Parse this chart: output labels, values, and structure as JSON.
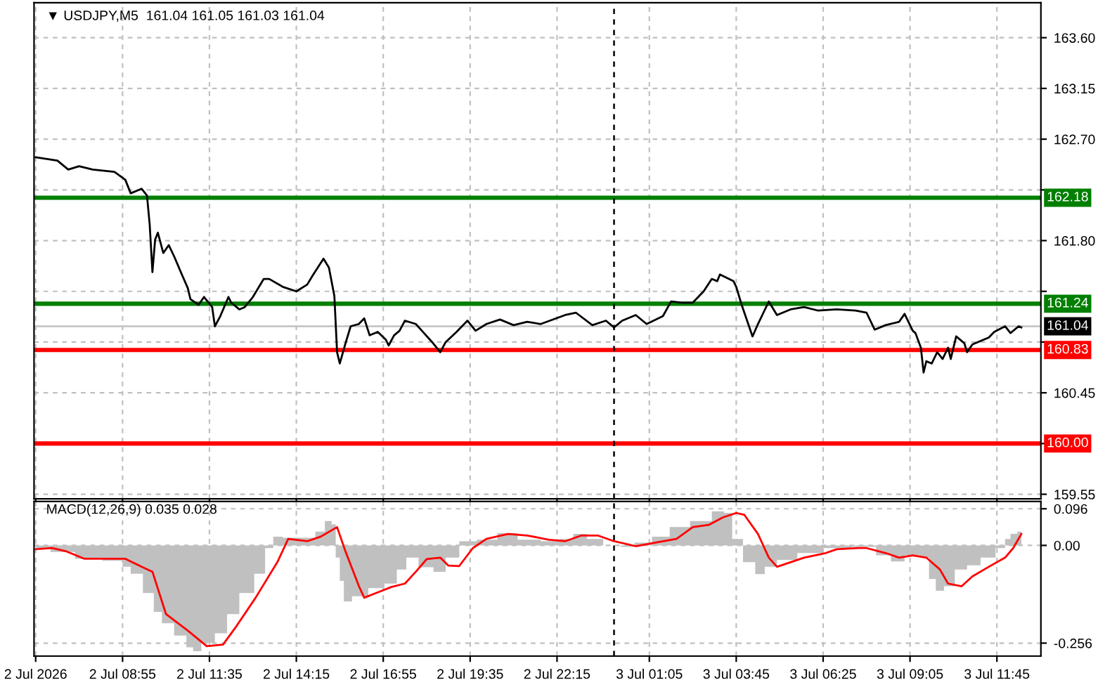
{
  "chart_data": [
    {
      "type": "line",
      "title": "▼ USDJPY,M5  161.04 161.05 161.03 161.04",
      "tick_labels": "y",
      "grid": true,
      "xlim": [
        "2026-07-02T06:12",
        "2026-07-03T13:06"
      ],
      "ylim": [
        159.51,
        163.91
      ],
      "xticks": [
        {
          "value": "2026-07-02T06:15",
          "label": null
        },
        {
          "value": "2026-07-02T08:55",
          "label": null
        },
        {
          "value": "2026-07-02T11:35",
          "label": null
        },
        {
          "value": "2026-07-02T14:15",
          "label": null
        },
        {
          "value": "2026-07-02T16:55",
          "label": null
        },
        {
          "value": "2026-07-02T19:35",
          "label": null
        },
        {
          "value": "2026-07-02T22:15",
          "label": null
        },
        {
          "value": "2026-07-03T01:05",
          "label": null
        },
        {
          "value": "2026-07-03T03:45",
          "label": null
        },
        {
          "value": "2026-07-03T06:25",
          "label": null
        },
        {
          "value": "2026-07-03T09:05",
          "label": null
        },
        {
          "value": "2026-07-03T11:45",
          "label": null
        }
      ],
      "yticks": [
        {
          "value": 159.55,
          "label": "159.55"
        },
        {
          "value": 160.0,
          "label": null
        },
        {
          "value": 160.45,
          "label": "160.45"
        },
        {
          "value": 160.9,
          "label": null
        },
        {
          "value": 161.35,
          "label": null
        },
        {
          "value": 161.8,
          "label": "161.80"
        },
        {
          "value": 162.25,
          "label": null
        },
        {
          "value": 162.7,
          "label": "162.70"
        },
        {
          "value": 163.15,
          "label": "163.15"
        },
        {
          "value": 163.6,
          "label": "163.60"
        }
      ],
      "ref_lines": [
        {
          "axis": "x",
          "value": "2026-07-03T00:00",
          "color": "#000000",
          "line_style": "dashed"
        },
        {
          "axis": "y",
          "value": 161.04,
          "label": "161.04",
          "color": "#c0c0c0"
        },
        {
          "axis": "y",
          "value": 162.18,
          "label": "162.18",
          "color": "#007f00"
        },
        {
          "axis": "y",
          "value": 161.24,
          "label": "161.24",
          "color": "#007f00"
        },
        {
          "axis": "y",
          "value": 160.83,
          "label": "160.83",
          "color": "#ff0000"
        },
        {
          "axis": "y",
          "value": 160.0,
          "label": "160.00",
          "color": "#ff0000"
        }
      ],
      "series": [
        {
          "color": "#000000",
          "x": [
            "2026-07-02T06:15",
            "2026-07-02T06:55",
            "2026-07-02T07:15",
            "2026-07-02T07:35",
            "2026-07-02T08:00",
            "2026-07-02T08:40",
            "2026-07-02T09:00",
            "2026-07-02T09:10",
            "2026-07-02T09:30",
            "2026-07-02T09:40",
            "2026-07-02T09:45",
            "2026-07-02T09:50",
            "2026-07-02T09:55",
            "2026-07-02T10:00",
            "2026-07-02T10:10",
            "2026-07-02T10:20",
            "2026-07-02T10:30",
            "2026-07-02T10:45",
            "2026-07-02T10:55",
            "2026-07-02T11:00",
            "2026-07-02T11:15",
            "2026-07-02T11:25",
            "2026-07-02T11:40",
            "2026-07-02T11:45",
            "2026-07-02T11:55",
            "2026-07-02T12:10",
            "2026-07-02T12:15",
            "2026-07-02T12:30",
            "2026-07-02T12:40",
            "2026-07-02T12:55",
            "2026-07-02T13:15",
            "2026-07-02T13:25",
            "2026-07-02T13:50",
            "2026-07-02T14:15",
            "2026-07-02T14:35",
            "2026-07-02T14:45",
            "2026-07-02T15:05",
            "2026-07-02T15:15",
            "2026-07-02T15:25",
            "2026-07-02T15:30",
            "2026-07-02T15:35",
            "2026-07-02T15:45",
            "2026-07-02T15:55",
            "2026-07-02T16:10",
            "2026-07-02T16:20",
            "2026-07-02T16:30",
            "2026-07-02T16:45",
            "2026-07-02T17:00",
            "2026-07-02T17:05",
            "2026-07-02T17:15",
            "2026-07-02T17:25",
            "2026-07-02T17:35",
            "2026-07-02T17:55",
            "2026-07-02T18:10",
            "2026-07-02T18:25",
            "2026-07-02T18:40",
            "2026-07-02T18:50",
            "2026-07-02T19:10",
            "2026-07-02T19:30",
            "2026-07-02T19:45",
            "2026-07-02T20:05",
            "2026-07-02T20:30",
            "2026-07-02T20:55",
            "2026-07-02T21:20",
            "2026-07-02T21:45",
            "2026-07-02T22:30",
            "2026-07-02T22:50",
            "2026-07-02T23:20",
            "2026-07-02T23:45",
            "2026-07-03T00:00",
            "2026-07-03T00:15",
            "2026-07-03T00:40",
            "2026-07-03T01:00",
            "2026-07-03T01:30",
            "2026-07-03T01:45",
            "2026-07-03T02:05",
            "2026-07-03T02:25",
            "2026-07-03T02:45",
            "2026-07-03T03:00",
            "2026-07-03T03:10",
            "2026-07-03T03:15",
            "2026-07-03T03:40",
            "2026-07-03T03:45",
            "2026-07-03T03:55",
            "2026-07-03T04:00",
            "2026-07-03T04:15",
            "2026-07-03T04:25",
            "2026-07-03T04:35",
            "2026-07-03T04:45",
            "2026-07-03T05:00",
            "2026-07-03T05:25",
            "2026-07-03T05:50",
            "2026-07-03T06:15",
            "2026-07-03T06:50",
            "2026-07-03T07:25",
            "2026-07-03T07:45",
            "2026-07-03T08:00",
            "2026-07-03T08:20",
            "2026-07-03T08:45",
            "2026-07-03T08:55",
            "2026-07-03T09:10",
            "2026-07-03T09:15",
            "2026-07-03T09:25",
            "2026-07-03T09:30",
            "2026-07-03T09:35",
            "2026-07-03T09:45",
            "2026-07-03T09:55",
            "2026-07-03T10:05",
            "2026-07-03T10:15",
            "2026-07-03T10:20",
            "2026-07-03T10:30",
            "2026-07-03T10:45",
            "2026-07-03T10:50",
            "2026-07-03T11:00",
            "2026-07-03T11:30",
            "2026-07-03T11:40",
            "2026-07-03T12:00",
            "2026-07-03T12:10",
            "2026-07-03T12:25",
            "2026-07-03T12:30"
          ],
          "values": [
            162.54,
            162.51,
            162.43,
            162.46,
            162.43,
            162.41,
            162.34,
            162.22,
            162.26,
            162.2,
            161.94,
            161.52,
            161.81,
            161.87,
            161.69,
            161.76,
            161.66,
            161.49,
            161.38,
            161.28,
            161.23,
            161.3,
            161.21,
            161.04,
            161.13,
            161.3,
            161.25,
            161.19,
            161.21,
            161.3,
            161.46,
            161.46,
            161.39,
            161.35,
            161.41,
            161.49,
            161.64,
            161.56,
            161.31,
            160.81,
            160.71,
            160.88,
            161.04,
            161.06,
            161.11,
            160.96,
            160.99,
            160.92,
            160.87,
            160.96,
            161.0,
            161.09,
            161.06,
            160.98,
            160.9,
            160.81,
            160.9,
            160.99,
            161.09,
            161.0,
            161.06,
            161.1,
            161.05,
            161.08,
            161.06,
            161.14,
            161.16,
            161.05,
            161.09,
            161.03,
            161.09,
            161.14,
            161.06,
            161.13,
            161.26,
            161.25,
            161.25,
            161.35,
            161.46,
            161.44,
            161.5,
            161.44,
            161.39,
            161.23,
            161.16,
            160.95,
            161.06,
            161.16,
            161.26,
            161.14,
            161.19,
            161.21,
            161.18,
            161.19,
            161.18,
            161.16,
            161.01,
            161.05,
            161.08,
            161.15,
            161.0,
            160.98,
            160.85,
            160.63,
            160.73,
            160.71,
            160.81,
            160.75,
            160.85,
            160.75,
            160.95,
            160.89,
            160.81,
            160.88,
            160.94,
            160.99,
            161.04,
            160.98,
            161.04,
            161.03
          ]
        }
      ]
    },
    {
      "type": "line",
      "title": "MACD(12,26,9) 0.035 0.028",
      "grid": true,
      "xlim": [
        "2026-07-02T06:12",
        "2026-07-03T13:06"
      ],
      "ylim": [
        -0.29,
        0.115
      ],
      "xticks": [
        {
          "value": "2026-07-02T06:15",
          "label": "2 Jul 2026"
        },
        {
          "value": "2026-07-02T08:55",
          "label": "2 Jul 08:55"
        },
        {
          "value": "2026-07-02T11:35",
          "label": "2 Jul 11:35"
        },
        {
          "value": "2026-07-02T14:15",
          "label": "2 Jul 14:15"
        },
        {
          "value": "2026-07-02T16:55",
          "label": "2 Jul 16:55"
        },
        {
          "value": "2026-07-02T19:35",
          "label": "2 Jul 19:35"
        },
        {
          "value": "2026-07-02T22:15",
          "label": "2 Jul 22:15"
        },
        {
          "value": "2026-07-03T01:05",
          "label": "3 Jul 01:05"
        },
        {
          "value": "2026-07-03T03:45",
          "label": "3 Jul 03:45"
        },
        {
          "value": "2026-07-03T06:25",
          "label": "3 Jul 06:25"
        },
        {
          "value": "2026-07-03T09:05",
          "label": "3 Jul 09:05"
        },
        {
          "value": "2026-07-03T11:45",
          "label": "3 Jul 11:45"
        }
      ],
      "yticks": [
        {
          "value": -0.256,
          "label": "-0.256"
        },
        {
          "value": 0.0,
          "label": "0.00"
        },
        {
          "value": 0.096,
          "label": "0.096"
        }
      ],
      "ref_lines": [
        {
          "axis": "x",
          "value": "2026-07-03T00:00",
          "color": "#000000",
          "line_style": "dashed"
        }
      ],
      "series": [
        {
          "type": "area",
          "color": "#c0c0c0",
          "x": [
            "2026-07-02T06:15",
            "2026-07-02T07:10",
            "2026-07-02T07:45",
            "2026-07-02T08:50",
            "2026-07-02T09:00",
            "2026-07-02T09:20",
            "2026-07-02T09:45",
            "2026-07-02T10:00",
            "2026-07-02T10:15",
            "2026-07-02T10:45",
            "2026-07-02T11:00",
            "2026-07-02T11:10",
            "2026-07-02T11:30",
            "2026-07-02T12:00",
            "2026-07-02T12:15",
            "2026-07-02T12:45",
            "2026-07-02T13:10",
            "2026-07-02T13:25",
            "2026-07-02T13:40",
            "2026-07-02T14:00",
            "2026-07-02T14:40",
            "2026-07-02T15:00",
            "2026-07-02T15:15",
            "2026-07-02T15:25",
            "2026-07-02T15:30",
            "2026-07-02T15:40",
            "2026-07-02T15:45",
            "2026-07-02T16:10",
            "2026-07-02T16:45",
            "2026-07-02T17:10",
            "2026-07-02T17:30",
            "2026-07-02T17:45",
            "2026-07-02T18:15",
            "2026-07-02T18:40",
            "2026-07-02T19:00",
            "2026-07-02T19:30",
            "2026-07-02T20:05",
            "2026-07-02T20:45",
            "2026-07-02T21:20",
            "2026-07-02T22:10",
            "2026-07-02T22:30",
            "2026-07-02T23:00",
            "2026-07-02T23:20",
            "2026-07-03T00:00",
            "2026-07-03T00:25",
            "2026-07-03T00:50",
            "2026-07-03T01:30",
            "2026-07-03T01:55",
            "2026-07-03T02:45",
            "2026-07-03T03:15",
            "2026-07-03T03:30",
            "2026-07-03T03:45",
            "2026-07-03T04:10",
            "2026-07-03T04:30",
            "2026-07-03T04:45",
            "2026-07-03T05:15",
            "2026-07-03T06:00",
            "2026-07-03T06:50",
            "2026-07-03T07:45",
            "2026-07-03T08:20",
            "2026-07-03T08:40",
            "2026-07-03T09:10",
            "2026-07-03T09:35",
            "2026-07-03T09:45",
            "2026-07-03T10:00",
            "2026-07-03T10:15",
            "2026-07-03T10:40",
            "2026-07-03T11:00",
            "2026-07-03T11:30",
            "2026-07-03T11:55",
            "2026-07-03T12:05",
            "2026-07-03T12:15",
            "2026-07-03T12:30"
          ],
          "values": [
            -0.007,
            -0.017,
            -0.035,
            -0.04,
            -0.056,
            -0.074,
            -0.125,
            -0.174,
            -0.204,
            -0.236,
            -0.267,
            -0.277,
            -0.256,
            -0.23,
            -0.18,
            -0.125,
            -0.074,
            -0.007,
            0.023,
            0.02,
            0.02,
            0.036,
            0.064,
            0.055,
            -0.032,
            -0.093,
            -0.147,
            -0.133,
            -0.112,
            -0.1,
            -0.063,
            -0.032,
            -0.057,
            -0.069,
            -0.032,
            0.011,
            0.015,
            0.032,
            0.015,
            0.011,
            0.017,
            0.03,
            0.017,
            0.0,
            -0.004,
            0.007,
            0.023,
            0.048,
            0.064,
            0.089,
            0.085,
            0.017,
            -0.044,
            -0.075,
            -0.056,
            -0.038,
            -0.02,
            -0.007,
            -0.004,
            -0.026,
            -0.042,
            -0.026,
            -0.032,
            -0.088,
            -0.119,
            -0.107,
            -0.063,
            -0.052,
            -0.032,
            -0.007,
            0.017,
            0.03,
            0.036
          ]
        },
        {
          "type": "line",
          "color": "#ff0000",
          "x": [
            "2026-07-02T06:15",
            "2026-07-02T06:45",
            "2026-07-02T07:10",
            "2026-07-02T07:45",
            "2026-07-02T09:00",
            "2026-07-02T09:30",
            "2026-07-02T09:50",
            "2026-07-02T10:15",
            "2026-07-02T10:55",
            "2026-07-02T11:30",
            "2026-07-02T12:00",
            "2026-07-02T12:25",
            "2026-07-02T13:00",
            "2026-07-02T13:40",
            "2026-07-02T14:00",
            "2026-07-02T14:35",
            "2026-07-02T15:00",
            "2026-07-02T15:30",
            "2026-07-02T15:45",
            "2026-07-02T16:10",
            "2026-07-02T16:20",
            "2026-07-02T16:45",
            "2026-07-02T17:10",
            "2026-07-02T17:35",
            "2026-07-02T17:55",
            "2026-07-02T18:15",
            "2026-07-02T18:40",
            "2026-07-02T18:55",
            "2026-07-02T19:15",
            "2026-07-02T19:40",
            "2026-07-02T20:05",
            "2026-07-02T20:45",
            "2026-07-02T21:20",
            "2026-07-02T22:00",
            "2026-07-02T22:30",
            "2026-07-02T23:00",
            "2026-07-02T23:30",
            "2026-07-03T00:00",
            "2026-07-03T00:40",
            "2026-07-03T01:15",
            "2026-07-03T01:55",
            "2026-07-03T02:25",
            "2026-07-03T02:55",
            "2026-07-03T03:20",
            "2026-07-03T03:45",
            "2026-07-03T04:00",
            "2026-07-03T04:25",
            "2026-07-03T04:45",
            "2026-07-03T05:00",
            "2026-07-03T05:25",
            "2026-07-03T05:50",
            "2026-07-03T06:30",
            "2026-07-03T06:50",
            "2026-07-03T07:30",
            "2026-07-03T07:45",
            "2026-07-03T08:20",
            "2026-07-03T08:45",
            "2026-07-03T09:10",
            "2026-07-03T09:35",
            "2026-07-03T10:00",
            "2026-07-03T10:15",
            "2026-07-03T10:40",
            "2026-07-03T11:00",
            "2026-07-03T11:30",
            "2026-07-03T12:00",
            "2026-07-03T12:15",
            "2026-07-03T12:30"
          ],
          "values": [
            -0.01,
            -0.007,
            -0.015,
            -0.035,
            -0.035,
            -0.056,
            -0.069,
            -0.18,
            -0.223,
            -0.264,
            -0.26,
            -0.211,
            -0.137,
            -0.044,
            0.017,
            0.011,
            0.023,
            0.048,
            -0.014,
            -0.106,
            -0.137,
            -0.123,
            -0.109,
            -0.1,
            -0.069,
            -0.036,
            -0.032,
            -0.053,
            -0.054,
            -0.007,
            0.017,
            0.03,
            0.026,
            0.015,
            0.011,
            0.026,
            0.026,
            0.011,
            -0.002,
            0.007,
            0.017,
            0.048,
            0.054,
            0.073,
            0.085,
            0.08,
            0.03,
            -0.032,
            -0.056,
            -0.044,
            -0.032,
            -0.02,
            -0.01,
            -0.007,
            -0.007,
            -0.02,
            -0.032,
            -0.026,
            -0.032,
            -0.063,
            -0.1,
            -0.107,
            -0.081,
            -0.056,
            -0.032,
            -0.007,
            0.03
          ]
        }
      ]
    }
  ]
}
